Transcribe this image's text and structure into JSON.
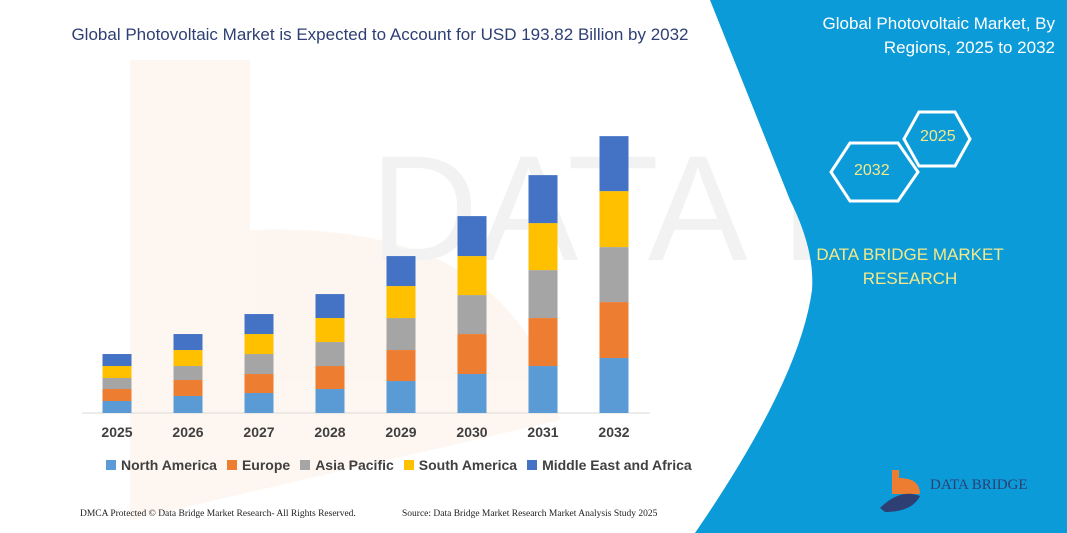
{
  "header": {
    "title": "Global Photovoltaic Market is Expected to Account for USD 193.82 Billion by 2032"
  },
  "side_panel": {
    "title": "Global Photovoltaic Market, By Regions, 2025 to 2032",
    "hex_years": [
      "2025",
      "2032"
    ],
    "brand": "DATA BRIDGE MARKET RESEARCH",
    "logo_text": "DATA BRIDGE",
    "color": "#0b9bd8"
  },
  "footer": {
    "left": "DMCA Protected © Data Bridge Market Research-  All Rights Reserved.",
    "right": "Source: Data Bridge Market Research  Market Analysis Study 2025"
  },
  "chart_data": {
    "type": "bar",
    "stacked": true,
    "title": "",
    "xlabel": "",
    "ylabel": "",
    "grid": false,
    "legend_position": "bottom",
    "categories": [
      "2025",
      "2026",
      "2027",
      "2028",
      "2029",
      "2030",
      "2031",
      "2032"
    ],
    "series": [
      {
        "name": "North America",
        "color": "#5b9bd5",
        "values": [
          8.4,
          11.9,
          14.0,
          16.8,
          22.4,
          27.3,
          32.9,
          38.5
        ]
      },
      {
        "name": "Europe",
        "color": "#ed7d31",
        "values": [
          8.4,
          11.2,
          13.3,
          16.1,
          21.7,
          28.0,
          33.6,
          39.2
        ]
      },
      {
        "name": "Asia Pacific",
        "color": "#a5a5a5",
        "values": [
          7.7,
          9.8,
          14.0,
          16.8,
          22.4,
          27.3,
          33.6,
          38.5
        ]
      },
      {
        "name": "South America",
        "color": "#ffc000",
        "values": [
          8.4,
          11.2,
          14.0,
          16.8,
          22.4,
          27.3,
          32.9,
          39.2
        ]
      },
      {
        "name": "Middle East and Africa",
        "color": "#4472c4",
        "values": [
          8.4,
          11.2,
          14.0,
          16.8,
          21.0,
          28.0,
          33.6,
          38.5
        ]
      }
    ]
  }
}
